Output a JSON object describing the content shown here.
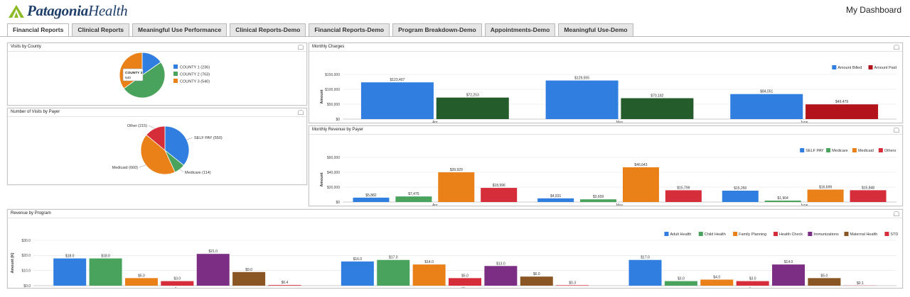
{
  "app": {
    "logo_main": "Patagonia",
    "logo_sub": "Health",
    "my_dashboard": "My Dashboard"
  },
  "tabs": [
    {
      "label": "Financial Reports",
      "active": true
    },
    {
      "label": "Clinical Reports"
    },
    {
      "label": "Meaningful Use Performance"
    },
    {
      "label": "Clinical Reports-Demo"
    },
    {
      "label": "Financial Reports-Demo"
    },
    {
      "label": "Program Breakdown-Demo"
    },
    {
      "label": "Appointments-Demo"
    },
    {
      "label": "Meaningful Use-Demo"
    }
  ],
  "panels": {
    "visits_county": "Visits by County",
    "visits_payer": "Number of Visits by Payer",
    "monthly_charges": "Monthly Charges",
    "monthly_revenue": "Monthly Revenue by Payer",
    "revenue_program": "Revenue by Program"
  },
  "colors": {
    "blue": "#2f7ee0",
    "green": "#4aa35c",
    "orange": "#ea8118",
    "red": "#d62d3a",
    "darkgreen": "#245c2b",
    "darkred": "#b3141b",
    "purple": "#7b2e83",
    "brown": "#8a5623"
  },
  "chart_data": [
    {
      "id": "visits_county",
      "type": "pie",
      "title": "Visits by County",
      "slices": [
        {
          "label": "COUNTY 1 (236)",
          "value": 236,
          "color": "#2f7ee0"
        },
        {
          "label": "COUNTY 2 (763)",
          "value": 763,
          "color": "#4aa35c"
        },
        {
          "label": "COUNTY 3 (540)",
          "value": 540,
          "color": "#ea8118"
        }
      ],
      "tooltip": {
        "title": "COUNTY 3",
        "value": "540"
      },
      "legend": "right"
    },
    {
      "id": "visits_payer",
      "type": "pie",
      "title": "Number of Visits by Payer",
      "slices": [
        {
          "label": "SELF PAY (550)",
          "value": 550,
          "color": "#2f7ee0"
        },
        {
          "label": "Medicare (114)",
          "value": 114,
          "color": "#4aa35c"
        },
        {
          "label": "Medicaid (660)",
          "value": 660,
          "color": "#ea8118"
        },
        {
          "label": "Other (215)",
          "value": 215,
          "color": "#d62d3a"
        }
      ]
    },
    {
      "id": "monthly_charges",
      "type": "bar",
      "title": "Monthly Charges",
      "ylabel": "Amount",
      "categories": [
        "Apr",
        "May",
        "June"
      ],
      "ylim": [
        0,
        150000
      ],
      "yticks": [
        "$0",
        "$50,000",
        "$100,000",
        "$150,000"
      ],
      "series": [
        {
          "name": "Amount Billed",
          "color": "#2f7ee0",
          "values": [
            123407,
            129555,
            84051
          ],
          "labels": [
            "$123,407",
            "$129,555",
            "$84,051"
          ]
        },
        {
          "name": "Amount Paid",
          "color": "#245c2b",
          "values": [
            72253,
            70182,
            49479
          ],
          "labels": [
            "$72,253",
            "$70,182",
            "$49,479"
          ],
          "colors": [
            "#245c2b",
            "#245c2b",
            "#b3141b"
          ]
        }
      ],
      "legend": "top-right"
    },
    {
      "id": "monthly_revenue",
      "type": "bar",
      "title": "Monthly Revenue by Payer",
      "ylabel": "Amount",
      "categories": [
        "Apr",
        "May",
        "June"
      ],
      "ylim": [
        0,
        60000
      ],
      "yticks": [
        "$0",
        "$20,000",
        "$40,000",
        "$60,000"
      ],
      "series": [
        {
          "name": "SELF PAY",
          "color": "#2f7ee0",
          "values": [
            5882,
            4931,
            15250
          ],
          "labels": [
            "$5,882",
            "$4,931",
            "$15,250"
          ]
        },
        {
          "name": "Medicare",
          "color": "#4aa35c",
          "values": [
            7475,
            3609,
            1904
          ],
          "labels": [
            "$7,475",
            "$3,609",
            "$1,904"
          ]
        },
        {
          "name": "Medicaid",
          "color": "#ea8118",
          "values": [
            39929,
            46643,
            16699
          ],
          "labels": [
            "$39,929",
            "$46,643",
            "$16,699"
          ]
        },
        {
          "name": "Others",
          "color": "#d62d3a",
          "values": [
            18996,
            15799,
            15848
          ],
          "labels": [
            "$18,996",
            "$15,799",
            "$15,848"
          ]
        }
      ],
      "legend": "top-right"
    },
    {
      "id": "revenue_program",
      "type": "bar",
      "title": "Revenue by Program",
      "ylabel": "Amount (K)",
      "categories": [
        "Apr",
        "May",
        "June"
      ],
      "ylim": [
        0,
        30
      ],
      "yticks": [
        "$0.0",
        "$10.0",
        "$20.0",
        "$30.0"
      ],
      "series": [
        {
          "name": "Adult Health",
          "color": "#2f7ee0",
          "values": [
            18.0,
            16.0,
            17.0
          ],
          "labels": [
            "$18.0",
            "$16.0",
            "$17.0"
          ]
        },
        {
          "name": "Child Health",
          "color": "#4aa35c",
          "values": [
            18.0,
            17.0,
            3.0
          ],
          "labels": [
            "$18.0",
            "$17.0",
            "$3.0"
          ]
        },
        {
          "name": "Family Planning",
          "color": "#ea8118",
          "values": [
            5.0,
            14.0,
            4.0
          ],
          "labels": [
            "$5.0",
            "$14.0",
            "$4.0"
          ]
        },
        {
          "name": "Health Check",
          "color": "#d62d3a",
          "values": [
            3.0,
            5.0,
            3.0
          ],
          "labels": [
            "$3.0",
            "$5.0",
            "$3.0"
          ]
        },
        {
          "name": "Immunizations",
          "color": "#7b2e83",
          "values": [
            21.0,
            13.0,
            14.0
          ],
          "labels": [
            "$21.0",
            "$13.0",
            "$14.0"
          ]
        },
        {
          "name": "Maternal Health",
          "color": "#8a5623",
          "values": [
            9.0,
            6.0,
            5.0
          ],
          "labels": [
            "$9.0",
            "$6.0",
            "$5.0"
          ]
        },
        {
          "name": "STD",
          "color": "#d62d3a",
          "values": [
            0.4,
            0.3,
            0.1
          ],
          "labels": [
            "$0.4",
            "$0.3",
            "$0.1"
          ]
        }
      ],
      "legend": "top-right"
    }
  ]
}
